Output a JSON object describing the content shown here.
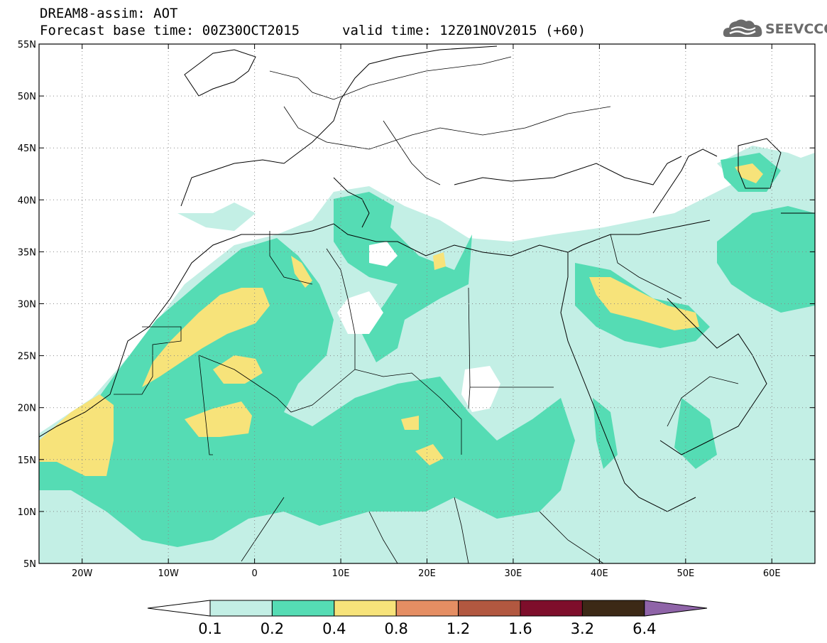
{
  "header": {
    "line1": "DREAM8-assim: AOT",
    "line2": "Forecast base time: 00Z30OCT2015",
    "valid": "valid time: 12Z01NOV2015 (+60)"
  },
  "logo": {
    "text": "SEEVCCC",
    "icon": "cloud-logo-icon",
    "color": "#6b6b6b"
  },
  "map": {
    "lon_range": [
      -25,
      65
    ],
    "lat_range": [
      5,
      55
    ],
    "x_ticks": [
      {
        "lon": -20,
        "label": "20W"
      },
      {
        "lon": -10,
        "label": "10W"
      },
      {
        "lon": 0,
        "label": "0"
      },
      {
        "lon": 10,
        "label": "10E"
      },
      {
        "lon": 20,
        "label": "20E"
      },
      {
        "lon": 30,
        "label": "30E"
      },
      {
        "lon": 40,
        "label": "40E"
      },
      {
        "lon": 50,
        "label": "50E"
      },
      {
        "lon": 60,
        "label": "60E"
      }
    ],
    "y_ticks": [
      {
        "lat": 55,
        "label": "55N"
      },
      {
        "lat": 50,
        "label": "50N"
      },
      {
        "lat": 45,
        "label": "45N"
      },
      {
        "lat": 40,
        "label": "40N"
      },
      {
        "lat": 35,
        "label": "35N"
      },
      {
        "lat": 30,
        "label": "30N"
      },
      {
        "lat": 25,
        "label": "25N"
      },
      {
        "lat": 20,
        "label": "20N"
      },
      {
        "lat": 15,
        "label": "15N"
      },
      {
        "lat": 10,
        "label": "10N"
      },
      {
        "lat": 5,
        "label": "5N"
      }
    ],
    "grid": true
  },
  "colorbar": {
    "colors": [
      "#ffffff",
      "#c3efe5",
      "#55dcb4",
      "#f7e37a",
      "#e58e63",
      "#b25840",
      "#7e0e2b",
      "#3c2916",
      "#8f64a8"
    ],
    "labels": [
      "0.1",
      "0.2",
      "0.4",
      "0.8",
      "1.2",
      "1.6",
      "3.2",
      "6.4"
    ]
  }
}
